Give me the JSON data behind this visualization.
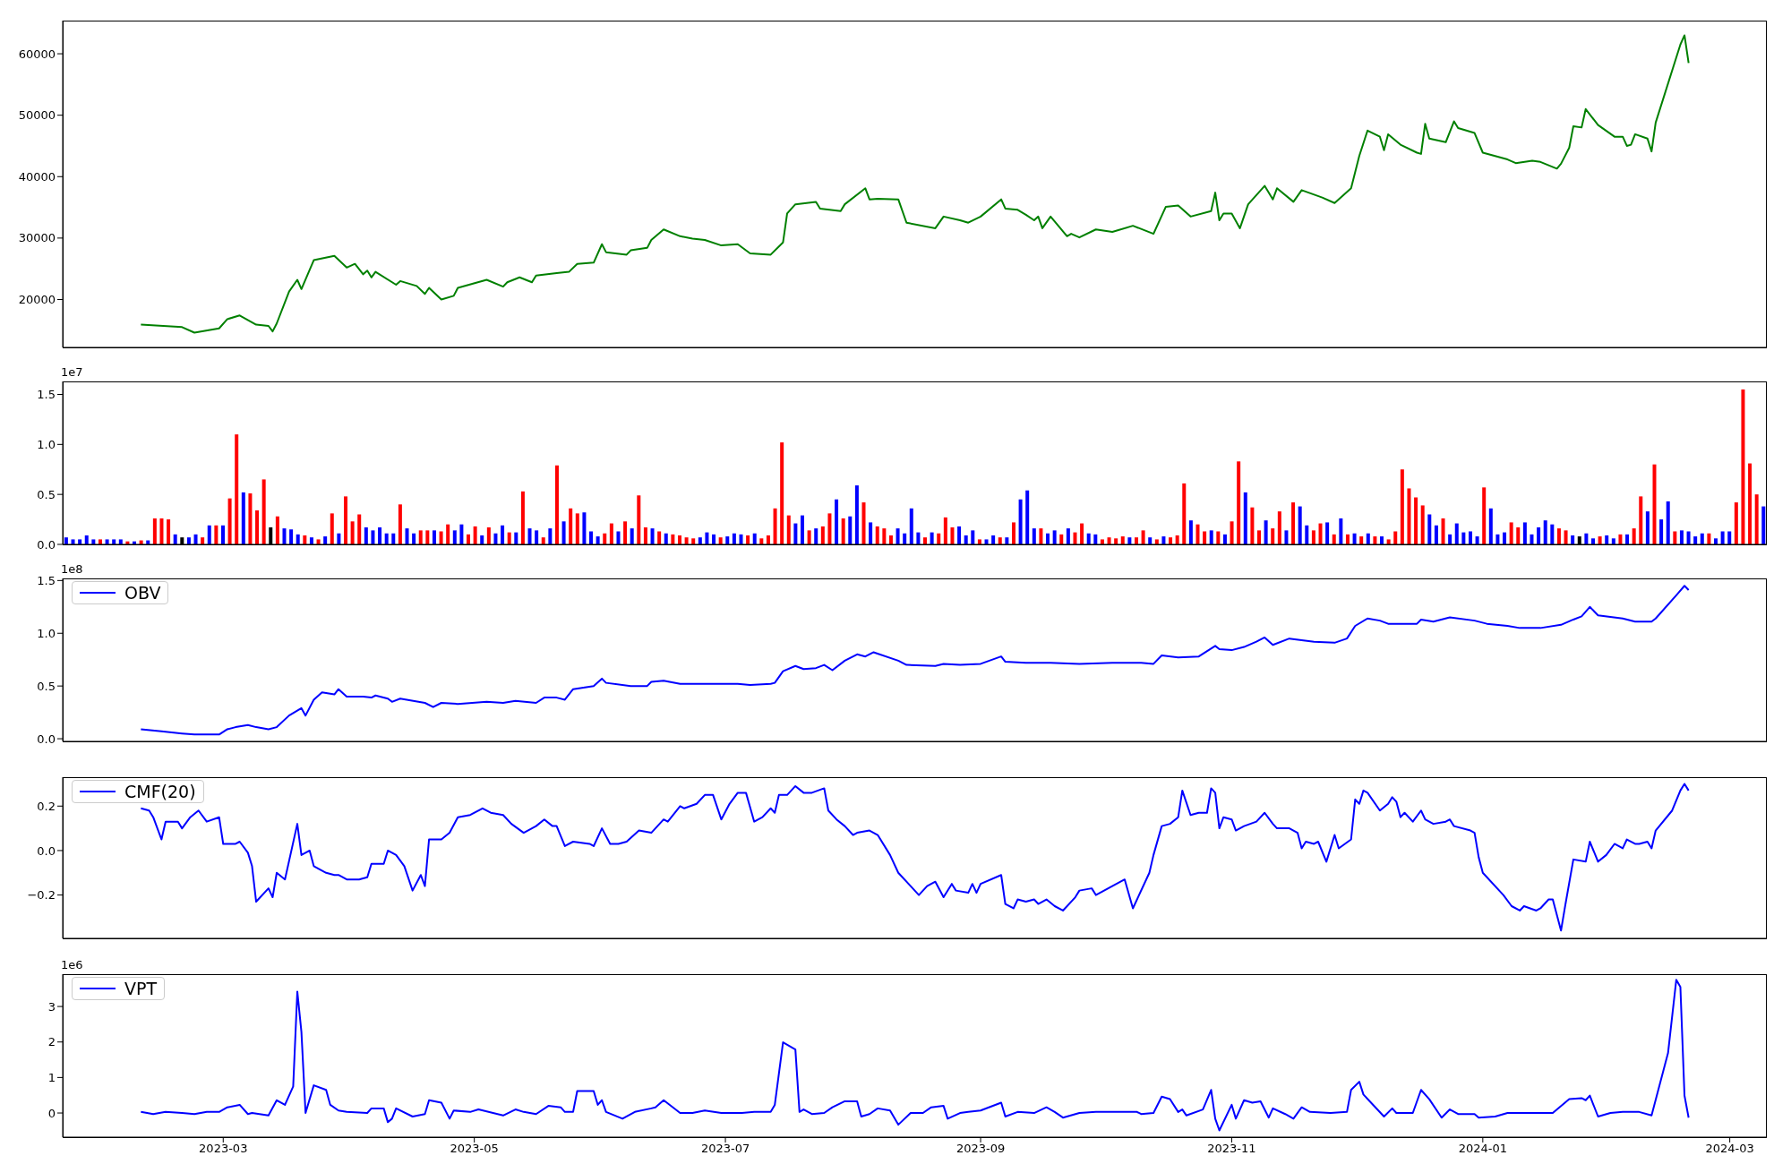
{
  "chart_data": [
    {
      "type": "line",
      "xlim": [
        "2023-01-21",
        "2024-03-10"
      ],
      "ylim": [
        12200,
        65400
      ],
      "yticks": [
        20000,
        30000,
        40000,
        50000,
        60000
      ],
      "tick_labels": "y",
      "x": [
        "2023-02-09",
        "2023-02-19",
        "2023-02-22",
        "2023-02-28",
        "2023-03-02",
        "2023-03-05",
        "2023-03-09",
        "2023-03-12",
        "2023-03-13",
        "2023-03-14",
        "2023-03-17",
        "2023-03-19",
        "2023-03-20",
        "2023-03-23",
        "2023-03-28",
        "2023-03-31",
        "2023-04-02",
        "2023-04-04",
        "2023-04-05",
        "2023-04-06",
        "2023-04-07",
        "2023-04-12",
        "2023-04-13",
        "2023-04-17",
        "2023-04-19",
        "2023-04-20",
        "2023-04-23",
        "2023-04-26",
        "2023-04-27",
        "2023-05-04",
        "2023-05-08",
        "2023-05-09",
        "2023-05-12",
        "2023-05-15",
        "2023-05-16",
        "2023-05-21",
        "2023-05-24",
        "2023-05-26",
        "2023-05-30",
        "2023-06-01",
        "2023-06-02",
        "2023-06-07",
        "2023-06-08",
        "2023-06-12",
        "2023-06-13",
        "2023-06-16",
        "2023-06-20",
        "2023-06-23",
        "2023-06-26",
        "2023-06-30",
        "2023-07-04",
        "2023-07-07",
        "2023-07-12",
        "2023-07-15",
        "2023-07-16",
        "2023-07-18",
        "2023-07-23",
        "2023-07-24",
        "2023-07-29",
        "2023-07-30",
        "2023-08-04",
        "2023-08-05",
        "2023-08-07",
        "2023-08-12",
        "2023-08-14",
        "2023-08-21",
        "2023-08-23",
        "2023-08-27",
        "2023-08-29",
        "2023-09-01",
        "2023-09-06",
        "2023-09-07",
        "2023-09-10",
        "2023-09-12",
        "2023-09-14",
        "2023-09-15",
        "2023-09-16",
        "2023-09-18",
        "2023-09-22",
        "2023-09-23",
        "2023-09-25",
        "2023-09-29",
        "2023-10-03",
        "2023-10-08",
        "2023-10-13",
        "2023-10-16",
        "2023-10-19",
        "2023-10-22",
        "2023-10-27",
        "2023-10-28",
        "2023-10-29",
        "2023-10-30",
        "2023-11-01",
        "2023-11-03",
        "2023-11-05",
        "2023-11-09",
        "2023-11-11",
        "2023-11-12",
        "2023-11-16",
        "2023-11-18",
        "2023-11-23",
        "2023-11-26",
        "2023-11-30",
        "2023-12-02",
        "2023-12-04",
        "2023-12-07",
        "2023-12-08",
        "2023-12-09",
        "2023-12-12",
        "2023-12-16",
        "2023-12-17",
        "2023-12-18",
        "2023-12-19",
        "2023-12-23",
        "2023-12-25",
        "2023-12-26",
        "2023-12-30",
        "2024-01-01",
        "2024-01-07",
        "2024-01-09",
        "2024-01-13",
        "2024-01-15",
        "2024-01-19",
        "2024-01-20",
        "2024-01-22",
        "2024-01-23",
        "2024-01-25",
        "2024-01-26",
        "2024-01-29",
        "2024-02-02",
        "2024-02-04",
        "2024-02-05",
        "2024-02-06",
        "2024-02-07",
        "2024-02-10",
        "2024-02-11",
        "2024-02-12",
        "2024-02-18",
        "2024-02-19",
        "2024-02-20"
      ],
      "series": [
        {
          "color": "#008000",
          "values": [
            15900,
            15500,
            14600,
            15300,
            16800,
            17400,
            15900,
            15700,
            14800,
            16100,
            21300,
            23200,
            21700,
            26400,
            27100,
            25200,
            25800,
            24100,
            24700,
            23600,
            24500,
            22400,
            23000,
            22200,
            20900,
            21900,
            20000,
            20600,
            21900,
            23200,
            22100,
            22800,
            23600,
            22800,
            23900,
            24300,
            24500,
            25800,
            26000,
            29000,
            27700,
            27300,
            28000,
            28400,
            29700,
            31400,
            30300,
            29900,
            29700,
            28800,
            29000,
            27500,
            27300,
            29300,
            34000,
            35500,
            35900,
            34800,
            34400,
            35500,
            38100,
            36300,
            36400,
            36300,
            32500,
            31600,
            33500,
            32900,
            32500,
            33500,
            36300,
            34800,
            34600,
            33800,
            32900,
            33500,
            31600,
            33500,
            30300,
            30700,
            30100,
            31400,
            31000,
            32000,
            30700,
            35100,
            35300,
            33500,
            34400,
            37400,
            32900,
            34000,
            34000,
            31600,
            35500,
            38500,
            36300,
            38100,
            35900,
            37800,
            36600,
            35700,
            38100,
            43400,
            47500,
            46500,
            44300,
            46900,
            45200,
            43900,
            43700,
            48600,
            46200,
            45600,
            49000,
            47900,
            47100,
            43900,
            42800,
            42200,
            42600,
            42400,
            41300,
            42100,
            44700,
            48200,
            48000,
            51000,
            48400,
            46500,
            46500,
            45000,
            45200,
            46900,
            46200,
            44100,
            48800,
            61500,
            63000,
            58500
          ]
        }
      ]
    },
    {
      "type": "bar",
      "tick_labels": "y",
      "ylim": [
        0,
        1.63
      ],
      "yticks": [
        {
          "value": 0,
          "label": "0.0"
        },
        {
          "value": 0.5,
          "label": "0.5"
        },
        {
          "value": 1,
          "label": "1.0"
        },
        {
          "value": 1.5,
          "label": "1.5"
        }
      ],
      "annotations": [
        "1e7"
      ],
      "categories": [
        null,
        null,
        null,
        null,
        null,
        null,
        null,
        null,
        null,
        null,
        null,
        null,
        null,
        null,
        null,
        null,
        null,
        null,
        null,
        null,
        null,
        null,
        null,
        null,
        null,
        null,
        null,
        null,
        null,
        null,
        null,
        null,
        null,
        null,
        null,
        null,
        null,
        null,
        null,
        null,
        null,
        null,
        null,
        null,
        null,
        null,
        null,
        null,
        null,
        null,
        null,
        null,
        null,
        null,
        null,
        null,
        null,
        null,
        null,
        null,
        null,
        null,
        null,
        null,
        null,
        null,
        null,
        null,
        null,
        null,
        null,
        null,
        null,
        null,
        null,
        null,
        null,
        null,
        null,
        null,
        null,
        null,
        null,
        null,
        null,
        null,
        null,
        null,
        null,
        null,
        null,
        null,
        null,
        null,
        null,
        null,
        null,
        null,
        null,
        null,
        null,
        null,
        null,
        null,
        null,
        null,
        null,
        null,
        null,
        null,
        null,
        null,
        null,
        null,
        null,
        null,
        null,
        null,
        null,
        null,
        null,
        null,
        null,
        null,
        null,
        null,
        null,
        null,
        null,
        null,
        null,
        null,
        null,
        null,
        null,
        null,
        null,
        null,
        null,
        null,
        null,
        null,
        null,
        null,
        null,
        null,
        null,
        null,
        null,
        null,
        null,
        null,
        null,
        null,
        null,
        null,
        null,
        null,
        null,
        null,
        null,
        null,
        null,
        null,
        null,
        null,
        null,
        null,
        null,
        null,
        null,
        null,
        null,
        null,
        null,
        null,
        null,
        null,
        null,
        null,
        null,
        null,
        null,
        null,
        null,
        null,
        null,
        null,
        null,
        null,
        null,
        null,
        null,
        null,
        null,
        null,
        null,
        null,
        null,
        null,
        null,
        null,
        null,
        null,
        null,
        null,
        null,
        null,
        null,
        null,
        null,
        null,
        null,
        null,
        null,
        null,
        null,
        null,
        null,
        null,
        null,
        null,
        null,
        null,
        null,
        null,
        null,
        null,
        null,
        null,
        null,
        null,
        null,
        null,
        null,
        null,
        null,
        null,
        null,
        null,
        null,
        null,
        null,
        null,
        null,
        null,
        null,
        null,
        null,
        null
      ],
      "values": [
        0.07,
        0.05,
        0.05,
        0.09,
        0.05,
        0.05,
        0.05,
        0.05,
        0.05,
        0.03,
        0.03,
        0.04,
        0.04,
        0.26,
        0.26,
        0.25,
        0.1,
        0.07,
        0.07,
        0.1,
        0.07,
        0.19,
        0.19,
        0.19,
        0.46,
        1.1,
        0.52,
        0.51,
        0.34,
        0.65,
        0.17,
        0.28,
        0.16,
        0.15,
        0.1,
        0.09,
        0.07,
        0.05,
        0.08,
        0.31,
        0.11,
        0.48,
        0.23,
        0.3,
        0.17,
        0.14,
        0.17,
        0.11,
        0.11,
        0.4,
        0.16,
        0.11,
        0.14,
        0.14,
        0.14,
        0.13,
        0.2,
        0.14,
        0.2,
        0.1,
        0.18,
        0.09,
        0.17,
        0.11,
        0.19,
        0.12,
        0.12,
        0.53,
        0.16,
        0.14,
        0.07,
        0.16,
        0.79,
        0.23,
        0.36,
        0.31,
        0.32,
        0.13,
        0.08,
        0.11,
        0.21,
        0.13,
        0.23,
        0.16,
        0.49,
        0.17,
        0.16,
        0.13,
        0.11,
        0.1,
        0.09,
        0.07,
        0.06,
        0.07,
        0.12,
        0.1,
        0.07,
        0.08,
        0.11,
        0.1,
        0.09,
        0.11,
        0.06,
        0.09,
        0.36,
        1.02,
        0.29,
        0.21,
        0.29,
        0.14,
        0.16,
        0.18,
        0.31,
        0.45,
        0.26,
        0.28,
        0.59,
        0.42,
        0.22,
        0.18,
        0.16,
        0.09,
        0.16,
        0.11,
        0.36,
        0.12,
        0.07,
        0.12,
        0.11,
        0.27,
        0.17,
        0.18,
        0.09,
        0.14,
        0.05,
        0.05,
        0.09,
        0.07,
        0.07,
        0.22,
        0.45,
        0.54,
        0.16,
        0.16,
        0.11,
        0.14,
        0.1,
        0.16,
        0.12,
        0.21,
        0.11,
        0.1,
        0.05,
        0.07,
        0.06,
        0.08,
        0.07,
        0.07,
        0.14,
        0.07,
        0.05,
        0.08,
        0.07,
        0.09,
        0.61,
        0.24,
        0.2,
        0.13,
        0.14,
        0.13,
        0.1,
        0.23,
        0.83,
        0.52,
        0.37,
        0.14,
        0.24,
        0.16,
        0.33,
        0.14,
        0.42,
        0.38,
        0.19,
        0.14,
        0.21,
        0.22,
        0.1,
        0.26,
        0.1,
        0.11,
        0.08,
        0.11,
        0.08,
        0.08,
        0.05,
        0.13,
        0.75,
        0.56,
        0.47,
        0.39,
        0.3,
        0.19,
        0.26,
        0.1,
        0.21,
        0.12,
        0.13,
        0.08,
        0.57,
        0.36,
        0.1,
        0.12,
        0.22,
        0.17,
        0.22,
        0.1,
        0.17,
        0.24,
        0.2,
        0.16,
        0.14,
        0.09,
        0.08,
        0.11,
        0.06,
        0.08,
        0.09,
        0.06,
        0.1,
        0.1,
        0.16,
        0.48,
        0.33,
        0.8,
        0.25,
        0.43,
        0.13,
        0.14,
        0.13,
        0.08,
        0.11,
        0.11,
        0.06,
        0.13,
        0.13,
        0.42,
        1.55,
        0.81,
        0.5,
        0.38
      ],
      "colors": [
        "#0000ff",
        "#0000ff",
        "#0000ff",
        "#0000ff",
        "#0000ff",
        "#ff0000",
        "#0000ff",
        "#0000ff",
        "#0000ff",
        "#ff0000",
        "#0000ff",
        "#ff0000",
        "#0000ff",
        "#ff0000",
        "#ff0000",
        "#ff0000",
        "#0000ff",
        "#000000",
        "#0000ff",
        "#0000ff",
        "#ff0000",
        "#0000ff",
        "#ff0000",
        "#0000ff",
        "#ff0000",
        "#ff0000",
        "#0000ff",
        "#ff0000",
        "#ff0000",
        "#ff0000",
        "#000000",
        "#ff0000",
        "#0000ff",
        "#0000ff",
        "#0000ff",
        "#ff0000",
        "#0000ff",
        "#ff0000",
        "#0000ff",
        "#ff0000",
        "#0000ff",
        "#ff0000",
        "#ff0000",
        "#ff0000",
        "#0000ff",
        "#0000ff",
        "#0000ff",
        "#0000ff",
        "#0000ff",
        "#ff0000",
        "#0000ff",
        "#0000ff",
        "#ff0000",
        "#ff0000",
        "#0000ff",
        "#ff0000",
        "#ff0000",
        "#0000ff",
        "#0000ff",
        "#ff0000",
        "#ff0000",
        "#0000ff",
        "#ff0000",
        "#0000ff",
        "#0000ff",
        "#ff0000",
        "#0000ff",
        "#ff0000",
        "#0000ff",
        "#0000ff",
        "#ff0000",
        "#0000ff",
        "#ff0000",
        "#0000ff",
        "#ff0000",
        "#ff0000",
        "#0000ff",
        "#0000ff",
        "#0000ff",
        "#ff0000",
        "#ff0000",
        "#0000ff",
        "#ff0000",
        "#0000ff",
        "#ff0000",
        "#ff0000",
        "#0000ff",
        "#ff0000",
        "#0000ff",
        "#ff0000",
        "#ff0000",
        "#ff0000",
        "#ff0000",
        "#0000ff",
        "#0000ff",
        "#0000ff",
        "#ff0000",
        "#0000ff",
        "#0000ff",
        "#0000ff",
        "#ff0000",
        "#0000ff",
        "#ff0000",
        "#ff0000",
        "#ff0000",
        "#ff0000",
        "#ff0000",
        "#0000ff",
        "#0000ff",
        "#ff0000",
        "#0000ff",
        "#ff0000",
        "#ff0000",
        "#0000ff",
        "#ff0000",
        "#0000ff",
        "#0000ff",
        "#ff0000",
        "#0000ff",
        "#ff0000",
        "#ff0000",
        "#ff0000",
        "#0000ff",
        "#0000ff",
        "#0000ff",
        "#0000ff",
        "#ff0000",
        "#0000ff",
        "#ff0000",
        "#ff0000",
        "#ff0000",
        "#0000ff",
        "#0000ff",
        "#0000ff",
        "#ff0000",
        "#0000ff",
        "#0000ff",
        "#ff0000",
        "#0000ff",
        "#ff0000",
        "#0000ff",
        "#0000ff",
        "#0000ff",
        "#ff0000",
        "#0000ff",
        "#0000ff",
        "#ff0000",
        "#0000ff",
        "#ff0000",
        "#ff0000",
        "#0000ff",
        "#0000ff",
        "#ff0000",
        "#ff0000",
        "#ff0000",
        "#ff0000",
        "#0000ff",
        "#ff0000",
        "#ff0000",
        "#0000ff",
        "#ff0000",
        "#0000ff",
        "#ff0000",
        "#ff0000",
        "#ff0000",
        "#0000ff",
        "#ff0000",
        "#ff0000",
        "#0000ff",
        "#ff0000",
        "#0000ff",
        "#ff0000",
        "#ff0000",
        "#0000ff",
        "#ff0000",
        "#ff0000",
        "#0000ff",
        "#ff0000",
        "#ff0000",
        "#0000ff",
        "#ff0000",
        "#0000ff",
        "#0000ff",
        "#ff0000",
        "#ff0000",
        "#0000ff",
        "#ff0000",
        "#0000ff",
        "#ff0000",
        "#0000ff",
        "#ff0000",
        "#0000ff",
        "#ff0000",
        "#0000ff",
        "#ff0000",
        "#ff0000",
        "#ff0000",
        "#ff0000",
        "#ff0000",
        "#ff0000",
        "#0000ff",
        "#0000ff",
        "#ff0000",
        "#0000ff",
        "#0000ff",
        "#0000ff",
        "#0000ff",
        "#0000ff",
        "#ff0000",
        "#0000ff",
        "#0000ff",
        "#0000ff",
        "#ff0000",
        "#ff0000",
        "#0000ff",
        "#0000ff",
        "#0000ff",
        "#0000ff",
        "#0000ff",
        "#ff0000",
        "#ff0000",
        "#0000ff",
        "#000000",
        "#0000ff",
        "#0000ff",
        "#ff0000",
        "#0000ff",
        "#0000ff",
        "#ff0000",
        "#0000ff",
        "#ff0000",
        "#ff0000",
        "#0000ff",
        "#ff0000",
        "#0000ff",
        "#0000ff",
        "#ff0000",
        "#0000ff",
        "#0000ff",
        "#0000ff",
        "#0000ff",
        "#ff0000",
        "#0000ff",
        "#0000ff",
        "#0000ff",
        "#ff0000",
        "#ff0000",
        "#ff0000",
        "#ff0000",
        "#0000ff"
      ]
    },
    {
      "type": "line",
      "xlim": [
        "2023-01-21",
        "2024-03-10"
      ],
      "ylim": [
        -0.025,
        1.52
      ],
      "yticks": [
        {
          "value": 0,
          "label": "0.0"
        },
        {
          "value": 0.5,
          "label": "0.5"
        },
        {
          "value": 1,
          "label": "1.0"
        },
        {
          "value": 1.5,
          "label": "1.5"
        }
      ],
      "annotations": [
        "1e8"
      ],
      "legend": "top left",
      "tick_labels": "y",
      "x": [
        "2023-02-09",
        "2023-02-14",
        "2023-02-19",
        "2023-02-22",
        "2023-02-28",
        "2023-03-02",
        "2023-03-04",
        "2023-03-07",
        "2023-03-09",
        "2023-03-12",
        "2023-03-14",
        "2023-03-17",
        "2023-03-20",
        "2023-03-21",
        "2023-03-23",
        "2023-03-25",
        "2023-03-28",
        "2023-03-29",
        "2023-03-31",
        "2023-04-04",
        "2023-04-06",
        "2023-04-07",
        "2023-04-10",
        "2023-04-11",
        "2023-04-13",
        "2023-04-19",
        "2023-04-21",
        "2023-04-23",
        "2023-04-27",
        "2023-05-04",
        "2023-05-08",
        "2023-05-11",
        "2023-05-16",
        "2023-05-18",
        "2023-05-21",
        "2023-05-23",
        "2023-05-25",
        "2023-05-30",
        "2023-06-01",
        "2023-06-02",
        "2023-06-08",
        "2023-06-12",
        "2023-06-13",
        "2023-06-16",
        "2023-06-20",
        "2023-06-23",
        "2023-06-30",
        "2023-07-04",
        "2023-07-07",
        "2023-07-12",
        "2023-07-13",
        "2023-07-15",
        "2023-07-18",
        "2023-07-20",
        "2023-07-23",
        "2023-07-25",
        "2023-07-27",
        "2023-07-30",
        "2023-08-02",
        "2023-08-04",
        "2023-08-06",
        "2023-08-12",
        "2023-08-14",
        "2023-08-21",
        "2023-08-23",
        "2023-08-27",
        "2023-09-01",
        "2023-09-06",
        "2023-09-07",
        "2023-09-12",
        "2023-09-18",
        "2023-09-25",
        "2023-10-03",
        "2023-10-10",
        "2023-10-13",
        "2023-10-15",
        "2023-10-19",
        "2023-10-24",
        "2023-10-28",
        "2023-10-29",
        "2023-11-01",
        "2023-11-04",
        "2023-11-07",
        "2023-11-09",
        "2023-11-11",
        "2023-11-15",
        "2023-11-21",
        "2023-11-26",
        "2023-11-29",
        "2023-12-01",
        "2023-12-04",
        "2023-12-07",
        "2023-12-09",
        "2023-12-16",
        "2023-12-17",
        "2023-12-20",
        "2023-12-24",
        "2023-12-30",
        "2024-01-02",
        "2024-01-07",
        "2024-01-10",
        "2024-01-15",
        "2024-01-20",
        "2024-01-23",
        "2024-01-25",
        "2024-01-27",
        "2024-01-29",
        "2024-02-04",
        "2024-02-07",
        "2024-02-11",
        "2024-02-12",
        "2024-02-17",
        "2024-02-19",
        "2024-02-20"
      ],
      "series": [
        {
          "name": "OBV",
          "color": "#0000ff",
          "values": [
            0.09,
            0.07,
            0.05,
            0.04,
            0.04,
            0.09,
            0.11,
            0.13,
            0.11,
            0.09,
            0.11,
            0.22,
            0.29,
            0.22,
            0.37,
            0.44,
            0.42,
            0.47,
            0.4,
            0.4,
            0.39,
            0.41,
            0.38,
            0.35,
            0.38,
            0.34,
            0.3,
            0.34,
            0.33,
            0.35,
            0.34,
            0.36,
            0.34,
            0.39,
            0.39,
            0.37,
            0.47,
            0.5,
            0.57,
            0.53,
            0.5,
            0.5,
            0.54,
            0.55,
            0.52,
            0.52,
            0.52,
            0.52,
            0.51,
            0.52,
            0.53,
            0.64,
            0.69,
            0.66,
            0.67,
            0.7,
            0.65,
            0.74,
            0.8,
            0.78,
            0.82,
            0.74,
            0.7,
            0.69,
            0.71,
            0.7,
            0.71,
            0.78,
            0.73,
            0.72,
            0.72,
            0.71,
            0.72,
            0.72,
            0.71,
            0.79,
            0.77,
            0.78,
            0.88,
            0.85,
            0.84,
            0.87,
            0.92,
            0.96,
            0.89,
            0.95,
            0.92,
            0.91,
            0.95,
            1.07,
            1.14,
            1.12,
            1.09,
            1.09,
            1.13,
            1.11,
            1.15,
            1.12,
            1.09,
            1.07,
            1.05,
            1.05,
            1.08,
            1.13,
            1.16,
            1.25,
            1.17,
            1.14,
            1.11,
            1.11,
            1.14,
            1.36,
            1.45,
            1.41
          ]
        }
      ]
    },
    {
      "type": "line",
      "xlim": [
        "2023-01-21",
        "2024-03-10"
      ],
      "ylim": [
        -0.395,
        0.33
      ],
      "yticks": [
        {
          "value": -0.2,
          "label": "−0.2"
        },
        {
          "value": 0,
          "label": "0.0"
        },
        {
          "value": 0.2,
          "label": "0.2"
        }
      ],
      "legend": "top left",
      "tick_labels": "y",
      "x": [
        "2023-02-09",
        "2023-02-11",
        "2023-02-12",
        "2023-02-14",
        "2023-02-15",
        "2023-02-18",
        "2023-02-19",
        "2023-02-21",
        "2023-02-23",
        "2023-02-25",
        "2023-02-28",
        "2023-03-01",
        "2023-03-04",
        "2023-03-05",
        "2023-03-07",
        "2023-03-08",
        "2023-03-09",
        "2023-03-12",
        "2023-03-13",
        "2023-03-14",
        "2023-03-16",
        "2023-03-19",
        "2023-03-20",
        "2023-03-22",
        "2023-03-23",
        "2023-03-26",
        "2023-03-28",
        "2023-03-29",
        "2023-03-31",
        "2023-04-03",
        "2023-04-05",
        "2023-04-06",
        "2023-04-09",
        "2023-04-10",
        "2023-04-12",
        "2023-04-14",
        "2023-04-16",
        "2023-04-18",
        "2023-04-19",
        "2023-04-20",
        "2023-04-23",
        "2023-04-25",
        "2023-04-27",
        "2023-04-30",
        "2023-05-03",
        "2023-05-05",
        "2023-05-08",
        "2023-05-10",
        "2023-05-13",
        "2023-05-16",
        "2023-05-18",
        "2023-05-20",
        "2023-05-21",
        "2023-05-23",
        "2023-05-25",
        "2023-05-29",
        "2023-05-30",
        "2023-06-01",
        "2023-06-03",
        "2023-06-05",
        "2023-06-07",
        "2023-06-10",
        "2023-06-13",
        "2023-06-16",
        "2023-06-17",
        "2023-06-20",
        "2023-06-21",
        "2023-06-24",
        "2023-06-26",
        "2023-06-28",
        "2023-06-30",
        "2023-07-02",
        "2023-07-04",
        "2023-07-06",
        "2023-07-08",
        "2023-07-10",
        "2023-07-12",
        "2023-07-13",
        "2023-07-14",
        "2023-07-16",
        "2023-07-18",
        "2023-07-20",
        "2023-07-22",
        "2023-07-25",
        "2023-07-26",
        "2023-07-28",
        "2023-07-30",
        "2023-08-01",
        "2023-08-02",
        "2023-08-05",
        "2023-08-07",
        "2023-08-10",
        "2023-08-12",
        "2023-08-15",
        "2023-08-17",
        "2023-08-19",
        "2023-08-21",
        "2023-08-23",
        "2023-08-25",
        "2023-08-26",
        "2023-08-29",
        "2023-08-30",
        "2023-08-31",
        "2023-09-01",
        "2023-09-06",
        "2023-09-07",
        "2023-09-09",
        "2023-09-10",
        "2023-09-12",
        "2023-09-14",
        "2023-09-15",
        "2023-09-17",
        "2023-09-19",
        "2023-09-21",
        "2023-09-24",
        "2023-09-25",
        "2023-09-28",
        "2023-09-29",
        "2023-10-06",
        "2023-10-08",
        "2023-10-12",
        "2023-10-13",
        "2023-10-15",
        "2023-10-17",
        "2023-10-19",
        "2023-10-20",
        "2023-10-22",
        "2023-10-24",
        "2023-10-26",
        "2023-10-27",
        "2023-10-28",
        "2023-10-29",
        "2023-10-30",
        "2023-11-01",
        "2023-11-02",
        "2023-11-04",
        "2023-11-07",
        "2023-11-09",
        "2023-11-11",
        "2023-11-12",
        "2023-11-15",
        "2023-11-17",
        "2023-11-18",
        "2023-11-19",
        "2023-11-21",
        "2023-11-22",
        "2023-11-24",
        "2023-11-26",
        "2023-11-27",
        "2023-11-30",
        "2023-12-01",
        "2023-12-02",
        "2023-12-03",
        "2023-12-04",
        "2023-12-07",
        "2023-12-09",
        "2023-12-10",
        "2023-12-11",
        "2023-12-12",
        "2023-12-13",
        "2023-12-15",
        "2023-12-17",
        "2023-12-18",
        "2023-12-20",
        "2023-12-23",
        "2023-12-24",
        "2023-12-25",
        "2023-12-29",
        "2023-12-30",
        "2023-12-31",
        "2024-01-01",
        "2024-01-06",
        "2024-01-08",
        "2024-01-10",
        "2024-01-11",
        "2024-01-14",
        "2024-01-15",
        "2024-01-17",
        "2024-01-18",
        "2024-01-20",
        "2024-01-21",
        "2024-01-23",
        "2024-01-26",
        "2024-01-27",
        "2024-01-29",
        "2024-01-31",
        "2024-02-02",
        "2024-02-04",
        "2024-02-05",
        "2024-02-07",
        "2024-02-08",
        "2024-02-10",
        "2024-02-11",
        "2024-02-12",
        "2024-02-16",
        "2024-02-18",
        "2024-02-19",
        "2024-02-20"
      ],
      "series": [
        {
          "name": "CMF(20)",
          "color": "#0000ff",
          "values": [
            0.19,
            0.18,
            0.15,
            0.05,
            0.13,
            0.13,
            0.1,
            0.15,
            0.18,
            0.13,
            0.15,
            0.03,
            0.03,
            0.04,
            -0.01,
            -0.07,
            -0.23,
            -0.17,
            -0.21,
            -0.1,
            -0.13,
            0.12,
            -0.02,
            0,
            -0.07,
            -0.1,
            -0.11,
            -0.11,
            -0.13,
            -0.13,
            -0.12,
            -0.06,
            -0.06,
            0,
            -0.02,
            -0.07,
            -0.18,
            -0.11,
            -0.16,
            0.05,
            0.05,
            0.08,
            0.15,
            0.16,
            0.19,
            0.17,
            0.16,
            0.12,
            0.08,
            0.11,
            0.14,
            0.11,
            0.11,
            0.02,
            0.04,
            0.03,
            0.02,
            0.1,
            0.03,
            0.03,
            0.04,
            0.09,
            0.08,
            0.14,
            0.13,
            0.2,
            0.19,
            0.21,
            0.25,
            0.25,
            0.14,
            0.21,
            0.26,
            0.26,
            0.13,
            0.15,
            0.19,
            0.17,
            0.25,
            0.25,
            0.29,
            0.26,
            0.26,
            0.28,
            0.18,
            0.14,
            0.11,
            0.07,
            0.08,
            0.09,
            0.07,
            -0.02,
            -0.1,
            -0.16,
            -0.2,
            -0.16,
            -0.14,
            -0.21,
            -0.15,
            -0.18,
            -0.19,
            -0.15,
            -0.19,
            -0.15,
            -0.11,
            -0.24,
            -0.26,
            -0.22,
            -0.23,
            -0.22,
            -0.24,
            -0.22,
            -0.25,
            -0.27,
            -0.21,
            -0.18,
            -0.17,
            -0.2,
            -0.13,
            -0.26,
            -0.1,
            -0.02,
            0.11,
            0.12,
            0.15,
            0.27,
            0.16,
            0.17,
            0.17,
            0.28,
            0.26,
            0.1,
            0.15,
            0.14,
            0.09,
            0.11,
            0.13,
            0.17,
            0.12,
            0.1,
            0.1,
            0.08,
            0.01,
            0.04,
            0.03,
            0.04,
            -0.05,
            0.07,
            0.01,
            0.05,
            0.23,
            0.21,
            0.27,
            0.26,
            0.18,
            0.21,
            0.24,
            0.22,
            0.15,
            0.17,
            0.13,
            0.18,
            0.14,
            0.12,
            0.13,
            0.14,
            0.11,
            0.09,
            0.08,
            -0.03,
            -0.1,
            -0.2,
            -0.25,
            -0.27,
            -0.25,
            -0.27,
            -0.26,
            -0.22,
            -0.22,
            -0.36,
            -0.25,
            -0.04,
            -0.05,
            0.04,
            -0.05,
            -0.02,
            0.03,
            0.01,
            0.05,
            0.03,
            0.03,
            0.04,
            0.01,
            0.09,
            0.18,
            0.27,
            0.3,
            0.27
          ]
        }
      ]
    },
    {
      "type": "line",
      "xlim": [
        "2023-01-21",
        "2024-03-10"
      ],
      "ylim": [
        -0.68,
        3.91
      ],
      "yticks": [
        0,
        1,
        2,
        3
      ],
      "annotations": [
        "1e6"
      ],
      "legend": "top left",
      "xticks": [
        {
          "value": "2023-03-01",
          "label": "2023-03"
        },
        {
          "value": "2023-05-01",
          "label": "2023-05"
        },
        {
          "value": "2023-07-01",
          "label": "2023-07"
        },
        {
          "value": "2023-09-01",
          "label": "2023-09"
        },
        {
          "value": "2023-11-01",
          "label": "2023-11"
        },
        {
          "value": "2024-01-01",
          "label": "2024-01"
        },
        {
          "value": "2024-03-01",
          "label": "2024-03"
        }
      ],
      "x": [
        "2023-02-09",
        "2023-02-12",
        "2023-02-15",
        "2023-02-19",
        "2023-02-22",
        "2023-02-25",
        "2023-02-28",
        "2023-03-02",
        "2023-03-05",
        "2023-03-07",
        "2023-03-08",
        "2023-03-12",
        "2023-03-14",
        "2023-03-16",
        "2023-03-18",
        "2023-03-19",
        "2023-03-20",
        "2023-03-21",
        "2023-03-23",
        "2023-03-26",
        "2023-03-27",
        "2023-03-29",
        "2023-03-31",
        "2023-04-05",
        "2023-04-06",
        "2023-04-09",
        "2023-04-10",
        "2023-04-11",
        "2023-04-12",
        "2023-04-16",
        "2023-04-19",
        "2023-04-20",
        "2023-04-23",
        "2023-04-25",
        "2023-04-26",
        "2023-04-30",
        "2023-05-02",
        "2023-05-08",
        "2023-05-11",
        "2023-05-13",
        "2023-05-16",
        "2023-05-19",
        "2023-05-22",
        "2023-05-23",
        "2023-05-25",
        "2023-05-26",
        "2023-05-30",
        "2023-05-31",
        "2023-06-01",
        "2023-06-02",
        "2023-06-06",
        "2023-06-09",
        "2023-06-13",
        "2023-06-14",
        "2023-06-16",
        "2023-06-20",
        "2023-06-23",
        "2023-06-26",
        "2023-06-30",
        "2023-07-05",
        "2023-07-08",
        "2023-07-12",
        "2023-07-13",
        "2023-07-15",
        "2023-07-18",
        "2023-07-19",
        "2023-07-20",
        "2023-07-22",
        "2023-07-25",
        "2023-07-27",
        "2023-07-30",
        "2023-08-02",
        "2023-08-03",
        "2023-08-05",
        "2023-08-07",
        "2023-08-10",
        "2023-08-12",
        "2023-08-15",
        "2023-08-18",
        "2023-08-20",
        "2023-08-23",
        "2023-08-24",
        "2023-08-27",
        "2023-08-29",
        "2023-09-01",
        "2023-09-06",
        "2023-09-07",
        "2023-09-10",
        "2023-09-14",
        "2023-09-17",
        "2023-09-19",
        "2023-09-21",
        "2023-09-25",
        "2023-09-29",
        "2023-10-03",
        "2023-10-09",
        "2023-10-10",
        "2023-10-13",
        "2023-10-15",
        "2023-10-17",
        "2023-10-19",
        "2023-10-20",
        "2023-10-21",
        "2023-10-25",
        "2023-10-27",
        "2023-10-28",
        "2023-10-29",
        "2023-11-01",
        "2023-11-02",
        "2023-11-04",
        "2023-11-06",
        "2023-11-08",
        "2023-11-10",
        "2023-11-11",
        "2023-11-14",
        "2023-11-16",
        "2023-11-18",
        "2023-11-20",
        "2023-11-25",
        "2023-11-29",
        "2023-11-30",
        "2023-12-02",
        "2023-12-03",
        "2023-12-08",
        "2023-12-10",
        "2023-12-11",
        "2023-12-15",
        "2023-12-17",
        "2023-12-19",
        "2023-12-22",
        "2023-12-24",
        "2023-12-26",
        "2023-12-30",
        "2023-12-31",
        "2024-01-04",
        "2024-01-07",
        "2024-01-13",
        "2024-01-18",
        "2024-01-22",
        "2024-01-25",
        "2024-01-26",
        "2024-01-27",
        "2024-01-29",
        "2024-02-01",
        "2024-02-04",
        "2024-02-08",
        "2024-02-11",
        "2024-02-15",
        "2024-02-17",
        "2024-02-18",
        "2024-02-19",
        "2024-02-20"
      ],
      "series": [
        {
          "name": "VPT",
          "color": "#0000ff",
          "values": [
            0.03,
            -0.03,
            0.03,
            0,
            -0.03,
            0.03,
            0.03,
            0.16,
            0.23,
            -0.03,
            0,
            -0.07,
            0.36,
            0.23,
            0.75,
            3.42,
            2.28,
            0,
            0.78,
            0.65,
            0.23,
            0.07,
            0.03,
            0,
            0.13,
            0.13,
            -0.26,
            -0.16,
            0.13,
            -0.1,
            -0.03,
            0.36,
            0.29,
            -0.16,
            0.07,
            0.03,
            0.1,
            -0.07,
            0.1,
            0.03,
            -0.03,
            0.2,
            0.16,
            0.03,
            0.03,
            0.62,
            0.62,
            0.23,
            0.36,
            0.03,
            -0.16,
            0.03,
            0.13,
            0.16,
            0.36,
            0,
            0,
            0.07,
            0,
            0,
            0.03,
            0.03,
            0.23,
            1.99,
            1.79,
            0.03,
            0.1,
            -0.03,
            0,
            0.16,
            0.33,
            0.33,
            -0.1,
            -0.03,
            0.13,
            0.07,
            -0.33,
            0,
            0,
            0.16,
            0.2,
            -0.16,
            0,
            0.03,
            0.07,
            0.29,
            -0.1,
            0.03,
            0,
            0.16,
            0.03,
            -0.13,
            0,
            0.03,
            0.03,
            0.03,
            -0.03,
            0,
            0.46,
            0.39,
            0.03,
            0.1,
            -0.07,
            0.1,
            0.65,
            -0.16,
            -0.49,
            0.23,
            -0.16,
            0.36,
            0.29,
            0.33,
            -0.13,
            0.13,
            -0.03,
            -0.16,
            0.16,
            0.03,
            0,
            0.03,
            0.65,
            0.88,
            0.52,
            -0.1,
            0.13,
            0,
            0,
            0.65,
            0.39,
            -0.13,
            0.1,
            -0.03,
            -0.03,
            -0.13,
            -0.1,
            0,
            0,
            0,
            0.39,
            0.42,
            0.36,
            0.49,
            -0.1,
            0,
            0.03,
            0.03,
            -0.07,
            1.69,
            3.75,
            3.55,
            0.49,
            -0.13
          ]
        }
      ]
    }
  ]
}
